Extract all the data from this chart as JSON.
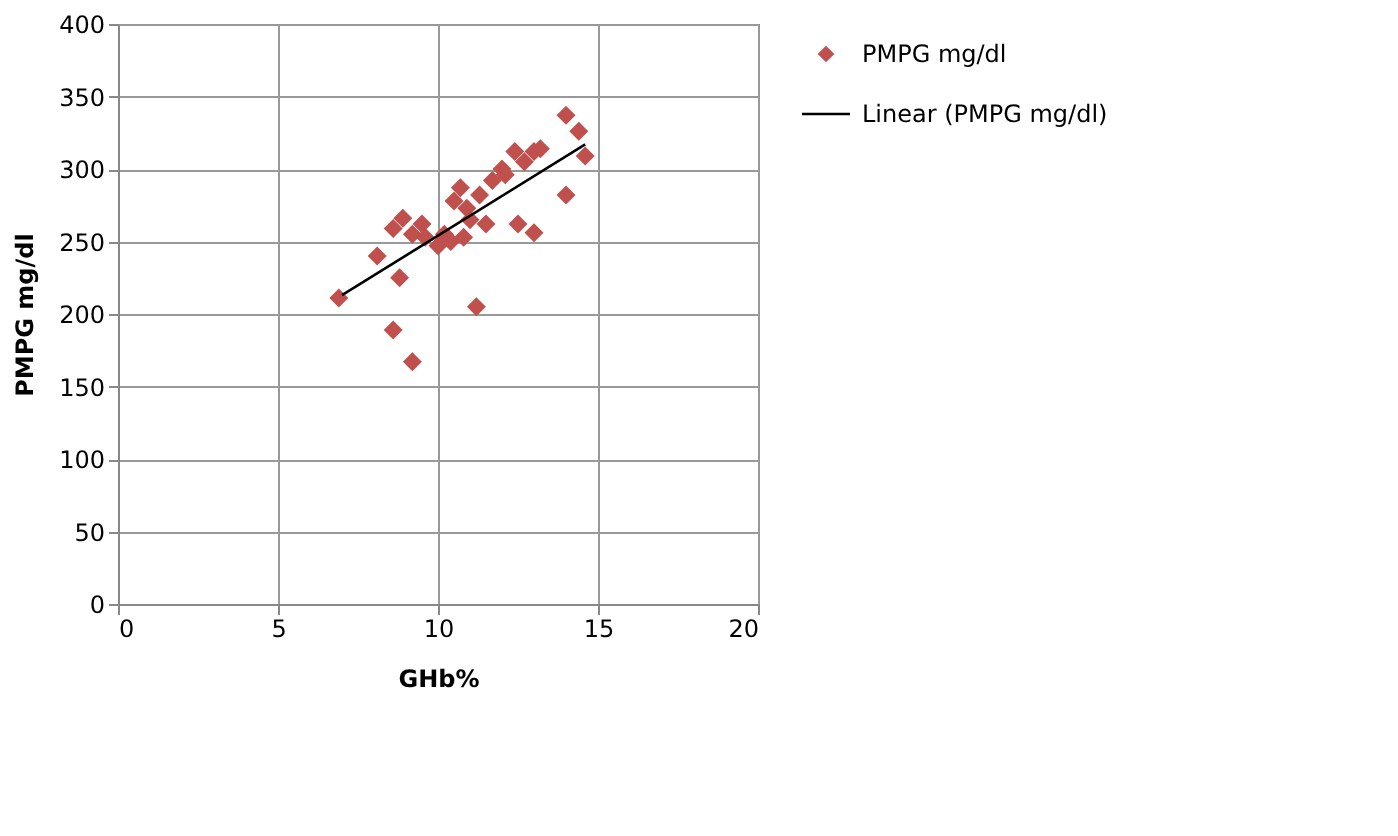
{
  "chart_data": {
    "type": "scatter",
    "xlabel": "GHb%",
    "ylabel": "PMPG mg/dl",
    "xlim": [
      0,
      20
    ],
    "xticks": [
      0,
      5,
      10,
      15,
      20
    ],
    "ylim": [
      0,
      400
    ],
    "yticks": [
      0,
      50,
      100,
      150,
      200,
      250,
      300,
      350,
      400
    ],
    "grid": true,
    "legend": "right",
    "marker": "diamond",
    "series": [
      {
        "name": "PMPG mg/dl",
        "type": "scatter",
        "color": "#c0504d",
        "x": [
          6.9,
          8.1,
          8.8,
          8.6,
          9.2,
          11.2,
          8.6,
          8.9,
          9.2,
          9.5,
          9.6,
          10.0,
          10.2,
          10.4,
          10.8,
          10.7,
          10.5,
          10.9,
          11.0,
          11.3,
          11.5,
          11.7,
          12.0,
          12.1,
          12.4,
          12.7,
          13.0,
          13.2,
          12.5,
          13.0,
          14.0,
          14.0,
          14.4,
          14.6
        ],
        "values": [
          211,
          240,
          225,
          189,
          167,
          205,
          259,
          266,
          255,
          262,
          253,
          247,
          255,
          250,
          253,
          287,
          278,
          273,
          265,
          282,
          262,
          292,
          300,
          296,
          312,
          305,
          312,
          314,
          262,
          256,
          282,
          337,
          326,
          309
        ]
      },
      {
        "name": "Linear (PMPG mg/dl)",
        "type": "line",
        "color": "#000000",
        "marker": "none",
        "line_style": "solid",
        "x": [
          7.0,
          14.6
        ],
        "values": [
          213,
          317
        ]
      }
    ]
  }
}
